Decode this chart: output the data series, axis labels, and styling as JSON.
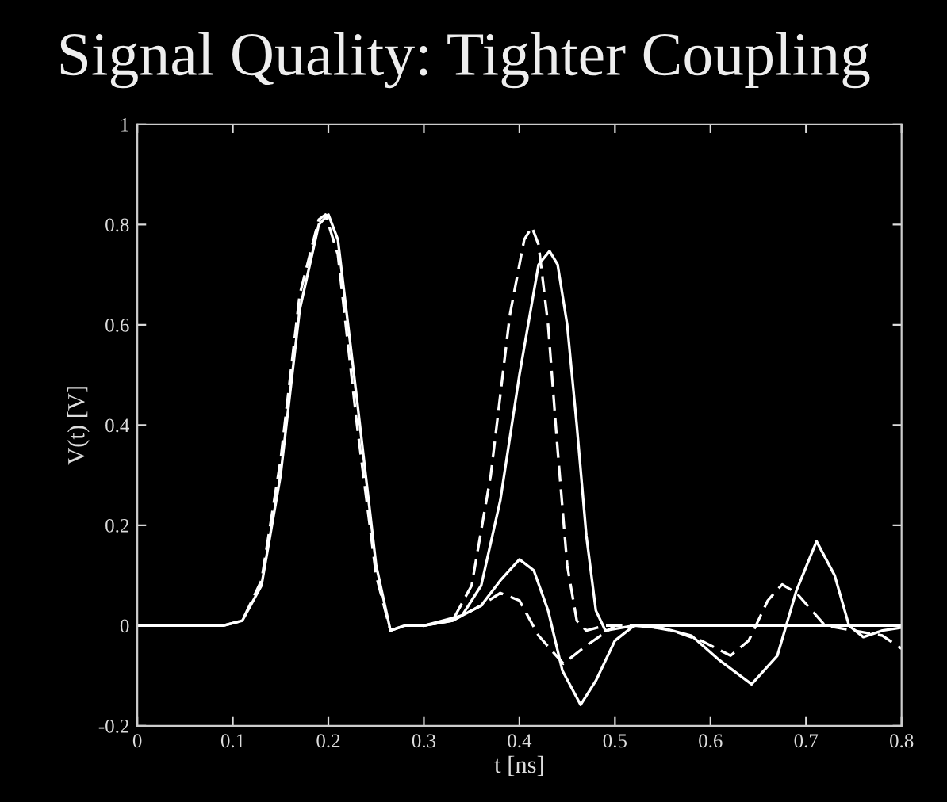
{
  "chart_data": {
    "type": "line",
    "title": "Signal Quality: Tighter Coupling",
    "xlabel": "t [ns]",
    "ylabel": "V(t) [V]",
    "xlim": [
      0,
      0.8
    ],
    "ylim": [
      -0.2,
      1
    ],
    "xticks": [
      0,
      0.1,
      0.2,
      0.3,
      0.4,
      0.5,
      0.6,
      0.7,
      0.8
    ],
    "yticks": [
      -0.2,
      0,
      0.2,
      0.4,
      0.6,
      0.8,
      1
    ],
    "grid": false,
    "legend": false,
    "marker": "none",
    "series": [
      {
        "color": "#ffffff",
        "line_style": "solid",
        "x": [
          0,
          0.09,
          0.11,
          0.13,
          0.15,
          0.17,
          0.19,
          0.2,
          0.21,
          0.23,
          0.25,
          0.265,
          0.28,
          0.3,
          0.32,
          0.34,
          0.36,
          0.38,
          0.4,
          0.42,
          0.4315,
          0.44,
          0.45,
          0.46,
          0.47,
          0.48,
          0.49,
          0.52,
          0.55,
          0.6,
          0.8
        ],
        "values": [
          0,
          0,
          0.01,
          0.08,
          0.3,
          0.63,
          0.8,
          0.82,
          0.77,
          0.45,
          0.12,
          -0.01,
          0,
          0,
          0.01,
          0.02,
          0.08,
          0.25,
          0.5,
          0.72,
          0.747,
          0.72,
          0.6,
          0.4,
          0.18,
          0.03,
          -0.01,
          0,
          0,
          0,
          0
        ]
      },
      {
        "color": "#ffffff",
        "line_style": "dashed",
        "x": [
          0.09,
          0.11,
          0.13,
          0.15,
          0.17,
          0.19,
          0.197,
          0.21,
          0.23,
          0.25,
          0.265,
          0.28,
          0.3,
          0.33,
          0.35,
          0.37,
          0.39,
          0.405,
          0.413,
          0.42,
          0.43,
          0.44,
          0.45,
          0.46,
          0.47,
          0.49,
          0.52,
          0.55
        ],
        "values": [
          0,
          0.01,
          0.09,
          0.33,
          0.66,
          0.81,
          0.82,
          0.74,
          0.4,
          0.1,
          -0.01,
          0,
          0,
          0.01,
          0.08,
          0.3,
          0.62,
          0.77,
          0.795,
          0.76,
          0.6,
          0.35,
          0.12,
          0.01,
          -0.01,
          0,
          0,
          0
        ]
      },
      {
        "color": "#ffffff",
        "line_style": "solid",
        "x": [
          0.3,
          0.33,
          0.36,
          0.38,
          0.4,
          0.415,
          0.43,
          0.445,
          0.464,
          0.48,
          0.5,
          0.52,
          0.55,
          0.58,
          0.61,
          0.643,
          0.67,
          0.69,
          0.711,
          0.73,
          0.745,
          0.76,
          0.78,
          0.8
        ],
        "values": [
          0,
          0.01,
          0.04,
          0.09,
          0.132,
          0.11,
          0.03,
          -0.09,
          -0.158,
          -0.11,
          -0.03,
          0,
          -0.005,
          -0.02,
          -0.07,
          -0.117,
          -0.06,
          0.07,
          0.168,
          0.1,
          0,
          -0.023,
          -0.01,
          -0.004
        ]
      },
      {
        "color": "#ffffff",
        "line_style": "dashed",
        "x": [
          0.3,
          0.33,
          0.36,
          0.38,
          0.4,
          0.42,
          0.446,
          0.47,
          0.5,
          0.53,
          0.56,
          0.59,
          0.621,
          0.64,
          0.66,
          0.675,
          0.69,
          0.72,
          0.75,
          0.78,
          0.8
        ],
        "values": [
          0,
          0.01,
          0.04,
          0.065,
          0.05,
          -0.02,
          -0.076,
          -0.04,
          0,
          0,
          -0.01,
          -0.03,
          -0.06,
          -0.03,
          0.05,
          0.082,
          0.065,
          0,
          -0.01,
          -0.02,
          -0.046
        ]
      }
    ]
  }
}
